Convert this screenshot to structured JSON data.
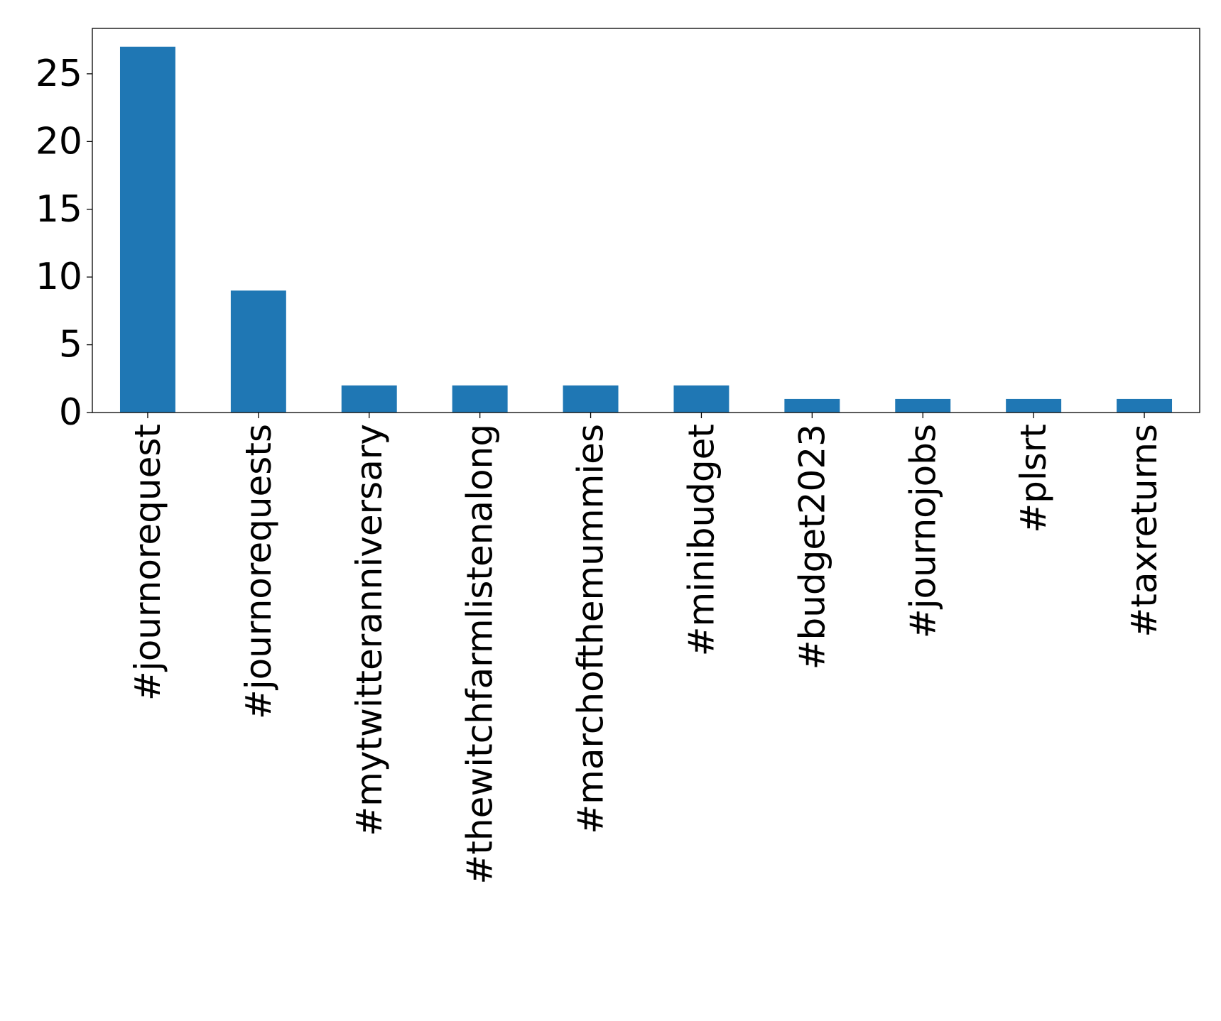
{
  "chart_data": {
    "type": "bar",
    "title": "",
    "xlabel": "",
    "ylabel": "",
    "categories": [
      "#journorequest",
      "#journorequests",
      "#mytwitteranniversary",
      "#thewitchfarmlistenalong",
      "#marchofthemummies",
      "#minibudget",
      "#budget2023",
      "#journojobs",
      "#plsrt",
      "#taxreturns"
    ],
    "values": [
      27,
      9,
      2,
      2,
      2,
      2,
      1,
      1,
      1,
      1
    ],
    "ylim": [
      0,
      28.35
    ],
    "yticks": [
      0,
      5,
      10,
      15,
      20,
      25
    ],
    "grid": false,
    "legend": "none",
    "bar_color": "#1f77b4"
  }
}
